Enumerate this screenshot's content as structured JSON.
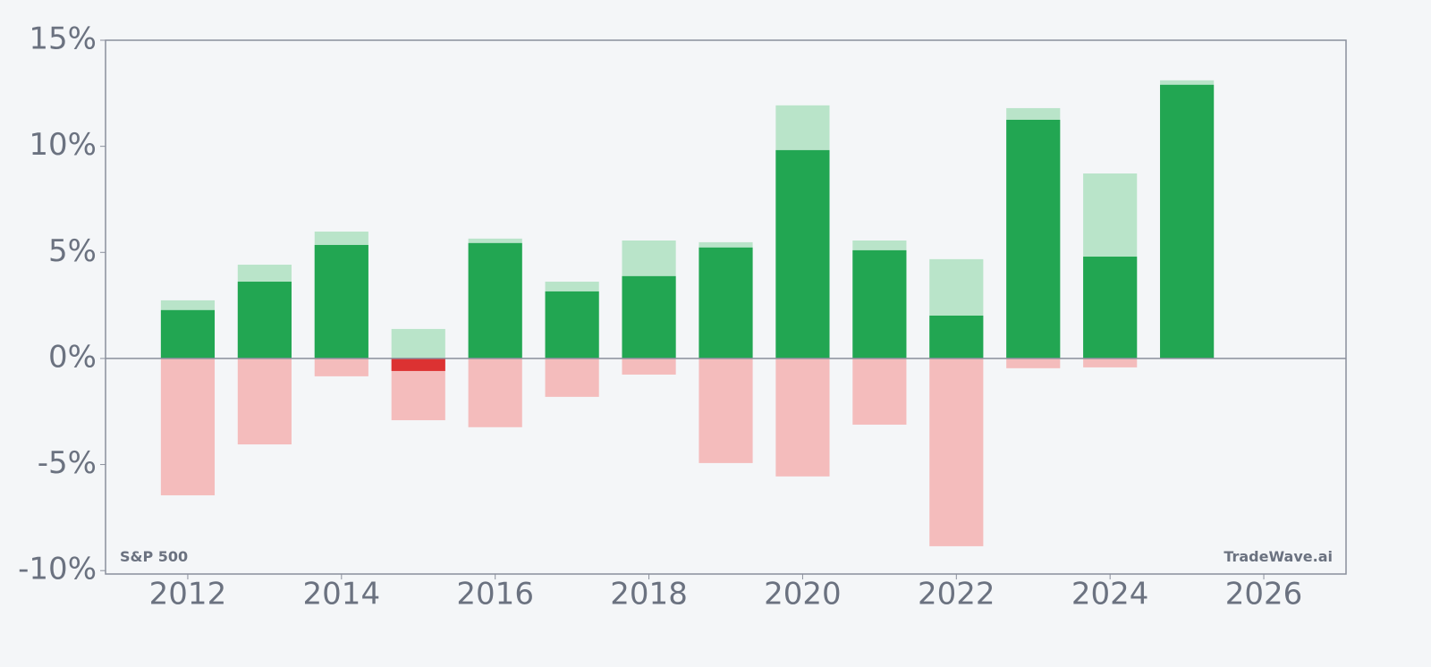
{
  "chart_data": {
    "type": "range_bar",
    "x": [
      2012,
      2013,
      2014,
      2015,
      2016,
      2017,
      2018,
      2019,
      2020,
      2021,
      2022,
      2023,
      2024,
      2025
    ],
    "series": [
      {
        "color": "#b9e4c9",
        "values": [
          2.74,
          4.42,
          5.98,
          1.39,
          5.65,
          3.62,
          5.56,
          5.48,
          11.93,
          5.56,
          4.68,
          11.8,
          8.72,
          13.11
        ]
      },
      {
        "color": "#f4bcbc",
        "values": [
          -6.45,
          -4.05,
          -0.84,
          -2.91,
          -3.24,
          -1.81,
          -0.76,
          -4.93,
          -5.56,
          -3.12,
          -8.85,
          -0.46,
          -0.42,
          0
        ]
      },
      {
        "color": "#22a652",
        "negative_color": "#dc3232",
        "values": [
          2.28,
          3.62,
          5.35,
          -0.59,
          5.44,
          3.16,
          3.88,
          5.23,
          9.82,
          5.1,
          2.02,
          11.25,
          4.8,
          12.9
        ]
      }
    ],
    "xlim": [
      2010.93,
      2027.07
    ],
    "xticks": [
      2012,
      2014,
      2016,
      2018,
      2020,
      2022,
      2024,
      2026
    ],
    "ylim": [
      -10.16,
      15
    ],
    "yticks": [
      {
        "value": 15,
        "label": "15%"
      },
      {
        "value": 10,
        "label": "10%"
      },
      {
        "value": 5,
        "label": "5%"
      },
      {
        "value": 0,
        "label": "0%"
      },
      {
        "value": -5,
        "label": "-5%"
      },
      {
        "value": -10,
        "label": "-10%"
      }
    ],
    "bar_width": 0.7,
    "annotations": [
      "S&P 500",
      "TradeWave.ai"
    ]
  }
}
